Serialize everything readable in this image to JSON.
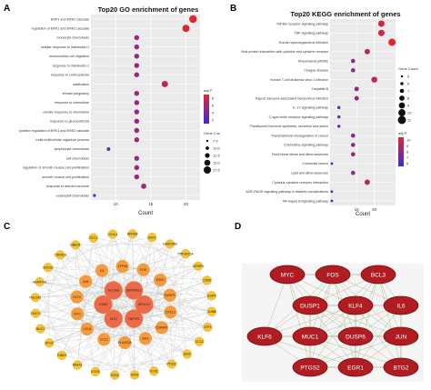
{
  "panels": {
    "a": "A",
    "b": "B",
    "c": "C",
    "d": "D"
  },
  "chart_data": [
    {
      "type": "scatter",
      "title": "Top20 GO enrichment of genes",
      "xlabel": "Count",
      "xticks": [
        10,
        15,
        20
      ],
      "xlim": [
        6.5,
        22
      ],
      "categories": [
        "ERK1 and ERK2 cascade",
        "regulation of ERK1 and ERK2 cascade",
        "monocyte chemotaxis",
        "cellular response to interleukin-1",
        "mononuclear cell migration",
        "response to interleukin-1",
        "response to corticosteroid",
        "ossification",
        "female pregnancy",
        "response to chemokine",
        "cellular response to chemokine",
        "response to glucocorticoid",
        "positive regulation of ERK1 and ERK2 cascade",
        "multi-multicellular organism process",
        "lymphocyte chemotaxis",
        "cell chemotaxis",
        "regulation of smooth muscle cell proliferation",
        "smooth muscle cell proliferation",
        "response to steroid hormone",
        "eosinophil chemotaxis"
      ],
      "values": [
        21,
        20,
        13,
        13,
        13,
        13,
        13,
        17,
        13,
        13,
        13,
        13,
        13,
        13,
        9,
        13,
        13,
        13,
        14,
        7
      ],
      "size_legend": {
        "title": "Gene Cou",
        "labels": [
          "7.5",
          "10.0",
          "12.5",
          "15.0",
          "17.5"
        ]
      },
      "color_legend": {
        "title": "adj.P",
        "labels": [
          "2",
          "4",
          "6",
          "8"
        ]
      },
      "grid": true,
      "legend_position": "right"
    },
    {
      "type": "scatter",
      "title": "Top20 KEGG enrichment of genes",
      "xlabel": "Count",
      "xticks": [
        15,
        20
      ],
      "xlim": [
        7.5,
        26
      ],
      "categories": [
        "Toll-like receptor signaling pathway",
        "TNF signaling pathway",
        "Human cytomegalovirus infection",
        "Viral protein interaction with cytokine and cytokine receptor",
        "Rheumatoid arthritis",
        "Chagas disease",
        "Human T-cell leukemia virus 1 infection",
        "Hepatitis B",
        "Kaposi sarcoma-associated herpesvirus infection",
        "IL-17 signaling pathway",
        "C-type lectin receptor signaling pathway",
        "Parathyroid hormone synthesis, secretion and action",
        "Transcriptional misregulation in cancer",
        "Chemokine signaling pathway",
        "Fluid shear stress and atherosclerosis",
        "Colorectal cancer",
        "Lipid and atherosclerosis",
        "Cytokine-cytokine receptor interaction",
        "AGE-RAGE signaling pathway in diabetic complications",
        "NF-kappa B signaling pathway"
      ],
      "values": [
        22,
        22,
        25,
        18,
        14,
        14,
        20,
        15,
        15,
        10,
        10,
        10,
        14,
        14,
        14,
        8,
        14,
        18,
        8,
        8
      ],
      "size_legend": {
        "title": "Gene Count",
        "labels": [
          "5",
          "6",
          "7",
          "8",
          "9",
          "10",
          "11"
        ]
      },
      "color_legend": {
        "title": "adj.P",
        "labels": [
          "6",
          "7",
          "8",
          "9",
          "10"
        ]
      },
      "grid": true,
      "legend_position": "right"
    }
  ],
  "network_c": {
    "nodes": [
      "APOLD1",
      "TNFSF1",
      "KLF2",
      "CD83",
      "SLC2A3",
      "SERPINE1",
      "CXCL2",
      "CSRNP1",
      "SIK1",
      "PLA2G2A",
      "CCL2",
      "CCL8",
      "MYC",
      "KLF4",
      "JUN",
      "IL6",
      "ZFP36",
      "FOS",
      "EGR1",
      "DUSP1",
      "JUNB",
      "ATF3",
      "CCL3",
      "IER2",
      "PTGS2",
      "CCN1",
      "IER3",
      "EGR2",
      "EGR3",
      "NR4A1",
      "THBS1",
      "BTG2",
      "MUC1",
      "CHKY1",
      "PHLDA1",
      "ADAMTS1",
      "SOCS3",
      "CDKN1A",
      "HBEGF",
      "STC1",
      "CCNL1",
      "NFKBIZ",
      "SGK1",
      "GADD45B",
      "PPP1R15A",
      "IGFBP4",
      "CD69",
      "EGR4"
    ]
  },
  "network_d": {
    "nodes": [
      "MYC",
      "FOS",
      "BCL3",
      "DUSP1",
      "KLF4",
      "IL6",
      "KLF6",
      "MUC1",
      "DUSP6",
      "JUN",
      "PTGS2",
      "EGR1",
      "BTG2"
    ]
  }
}
